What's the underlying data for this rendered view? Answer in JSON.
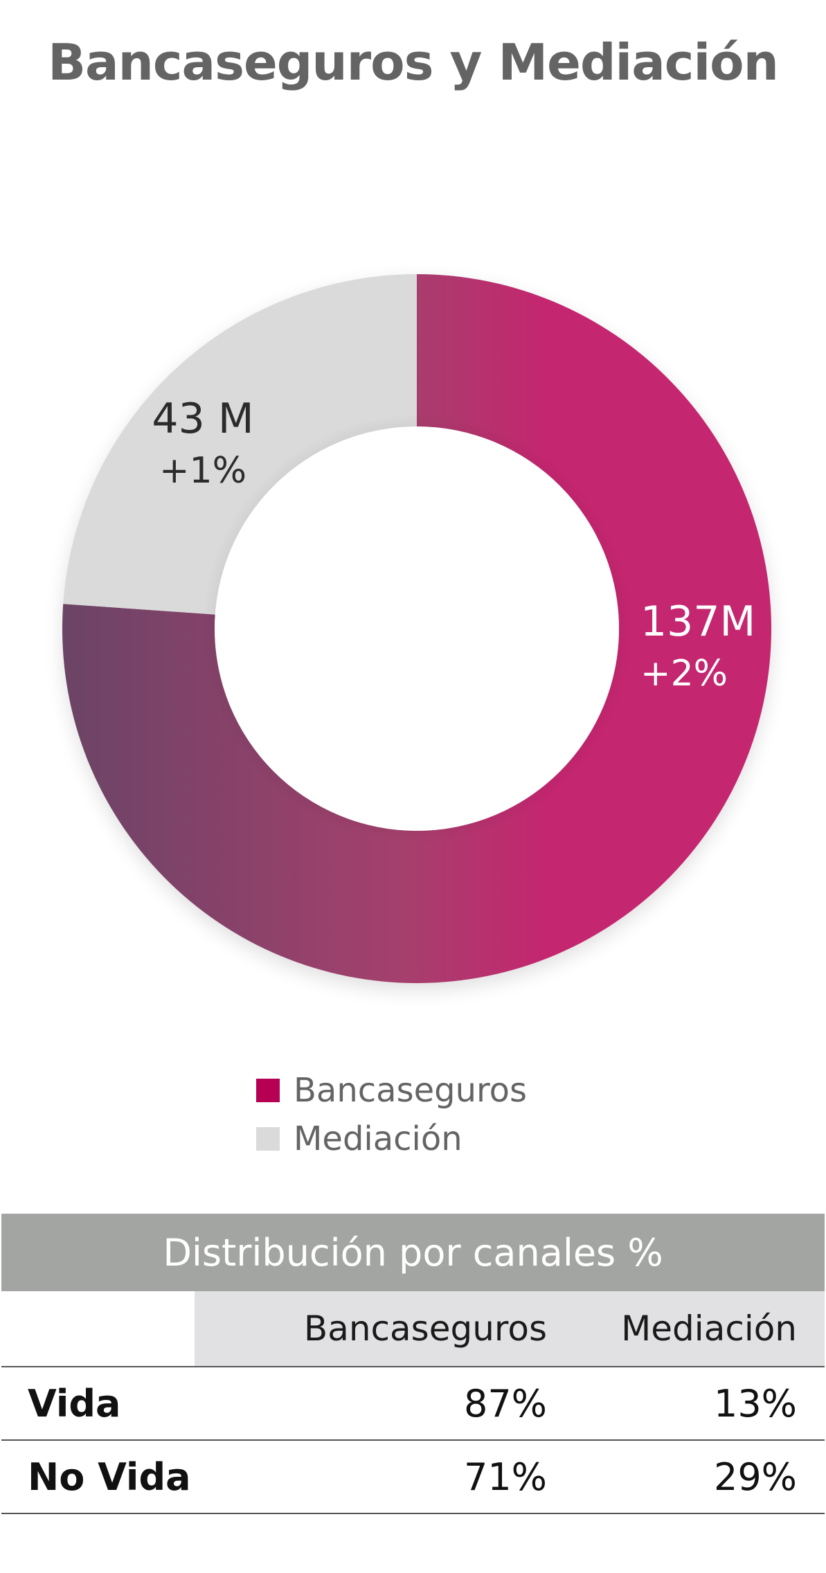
{
  "title": "Bancaseguros y Mediación",
  "chart_data": {
    "type": "pie",
    "variant": "donut",
    "series": [
      {
        "name": "Bancaseguros",
        "value": 137,
        "value_label": "137M",
        "change_label": "+2%",
        "color": "#c4266f"
      },
      {
        "name": "Mediación",
        "value": 43,
        "value_label": "43 M",
        "change_label": "+1%",
        "color": "#dadada"
      }
    ],
    "gradient_dark": "#6b4466",
    "legend_placement": "bottom"
  },
  "legend": [
    {
      "label": "Bancaseguros",
      "color": "#b50054"
    },
    {
      "label": "Mediación",
      "color": "#dadada"
    }
  ],
  "table": {
    "caption": "Distribución por canales %",
    "columns": [
      "",
      "Bancaseguros",
      "Mediación"
    ],
    "rows": [
      {
        "label": "Vida",
        "values": [
          "87%",
          "13%"
        ]
      },
      {
        "label": "No Vida",
        "values": [
          "71%",
          "29%"
        ]
      }
    ]
  }
}
